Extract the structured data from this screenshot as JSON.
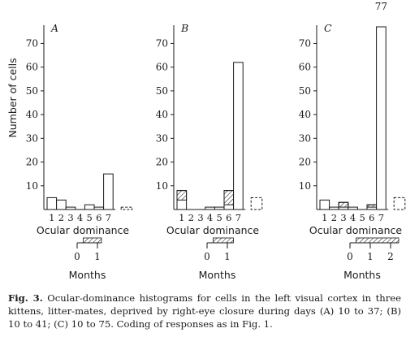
{
  "chart_data": [
    {
      "type": "bar",
      "panel": "A",
      "categories": [
        "1",
        "2",
        "3",
        "4",
        "5",
        "6",
        "7"
      ],
      "values": [
        5,
        4,
        1,
        0,
        2,
        1,
        15
      ],
      "hatched": [
        0,
        0,
        0,
        0,
        0,
        0,
        0
      ],
      "unresponsive": 1,
      "top_label": "",
      "ylabel": "Number of cells",
      "xlabel": "Ocular dominance",
      "yticks": [
        10,
        20,
        30,
        40,
        50,
        60,
        70
      ],
      "ylim": [
        0,
        77
      ],
      "grid": false,
      "timeline": {
        "label": "Months",
        "ticks": [
          "0",
          "1"
        ],
        "deprivation_months": [
          0.3,
          1.2
        ]
      }
    },
    {
      "type": "bar",
      "panel": "B",
      "categories": [
        "1",
        "2",
        "3",
        "4",
        "5",
        "6",
        "7"
      ],
      "values": [
        8,
        0,
        0,
        1,
        1,
        8,
        62
      ],
      "hatched": [
        4,
        0,
        0,
        0,
        0,
        6,
        0
      ],
      "unresponsive": 5,
      "top_label": "",
      "ylabel": "",
      "xlabel": "Ocular dominance",
      "yticks": [
        10,
        20,
        30,
        40,
        50,
        60,
        70
      ],
      "ylim": [
        0,
        77
      ],
      "grid": false,
      "timeline": {
        "label": "Months",
        "ticks": [
          "0",
          "1"
        ],
        "deprivation_months": [
          0.3,
          1.3
        ]
      }
    },
    {
      "type": "bar",
      "panel": "C",
      "categories": [
        "1",
        "2",
        "3",
        "4",
        "5",
        "6",
        "7"
      ],
      "values": [
        4,
        1,
        3,
        1,
        0,
        2,
        77
      ],
      "hatched": [
        0,
        0,
        2,
        0,
        0,
        1,
        0
      ],
      "unresponsive": 5,
      "top_label": "77",
      "ylabel": "",
      "xlabel": "Ocular dominance",
      "yticks": [
        10,
        20,
        30,
        40,
        50,
        60,
        70
      ],
      "ylim": [
        0,
        77
      ],
      "grid": false,
      "timeline": {
        "label": "Months",
        "ticks": [
          "0",
          "1",
          "2"
        ],
        "deprivation_months": [
          0.3,
          2.4
        ]
      }
    }
  ],
  "caption": {
    "label": "Fig. 3.",
    "text": "Ocular-dominance histograms for cells in the left visual cortex in three kittens, litter-mates, deprived by right-eye closure during days (A) 10 to 37; (B) 10 to 41; (C) 10 to 75. Coding of responses as in Fig. 1."
  }
}
